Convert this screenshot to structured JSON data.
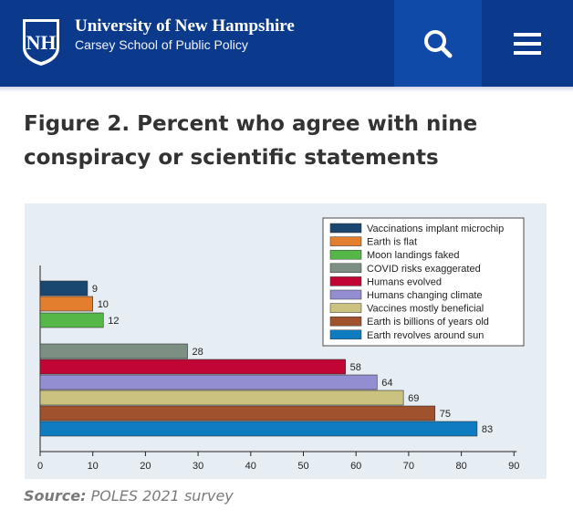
{
  "header": {
    "logo_initials": "NH",
    "university": "University of New Hampshire",
    "school": "Carsey School of Public Policy",
    "search_icon": "search-icon",
    "menu_icon": "hamburger-menu-icon",
    "bg_color": "#0b3a8c"
  },
  "figure": {
    "title": "Figure 2. Percent who agree with nine conspiracy or scientific statements",
    "source_label": "Source:",
    "source_text": "POLES 2021 survey"
  },
  "chart_data": {
    "type": "bar",
    "orientation": "horizontal",
    "series": [
      {
        "name": "Vaccinations implant microchip",
        "value": 9,
        "color": "#1a476f"
      },
      {
        "name": "Earth is flat",
        "value": 10,
        "color": "#e37e2f"
      },
      {
        "name": "Moon landings faked",
        "value": 12,
        "color": "#55b748"
      },
      {
        "name": "COVID risks exaggerated",
        "value": 28,
        "color": "#7d8f83"
      },
      {
        "name": "Humans evolved",
        "value": 58,
        "color": "#c10534"
      },
      {
        "name": "Humans changing climate",
        "value": 64,
        "color": "#938dd2"
      },
      {
        "name": "Vaccines mostly beneficial",
        "value": 69,
        "color": "#cac27e"
      },
      {
        "name": "Earth is billions of years old",
        "value": 75,
        "color": "#a0522d"
      },
      {
        "name": "Earth revolves around sun",
        "value": 83,
        "color": "#0f7bc1"
      }
    ],
    "xlim": [
      0,
      90
    ],
    "xticks": [
      0,
      10,
      20,
      30,
      40,
      50,
      60,
      70,
      80,
      90
    ],
    "legend_position": "top-right",
    "grid": false
  }
}
